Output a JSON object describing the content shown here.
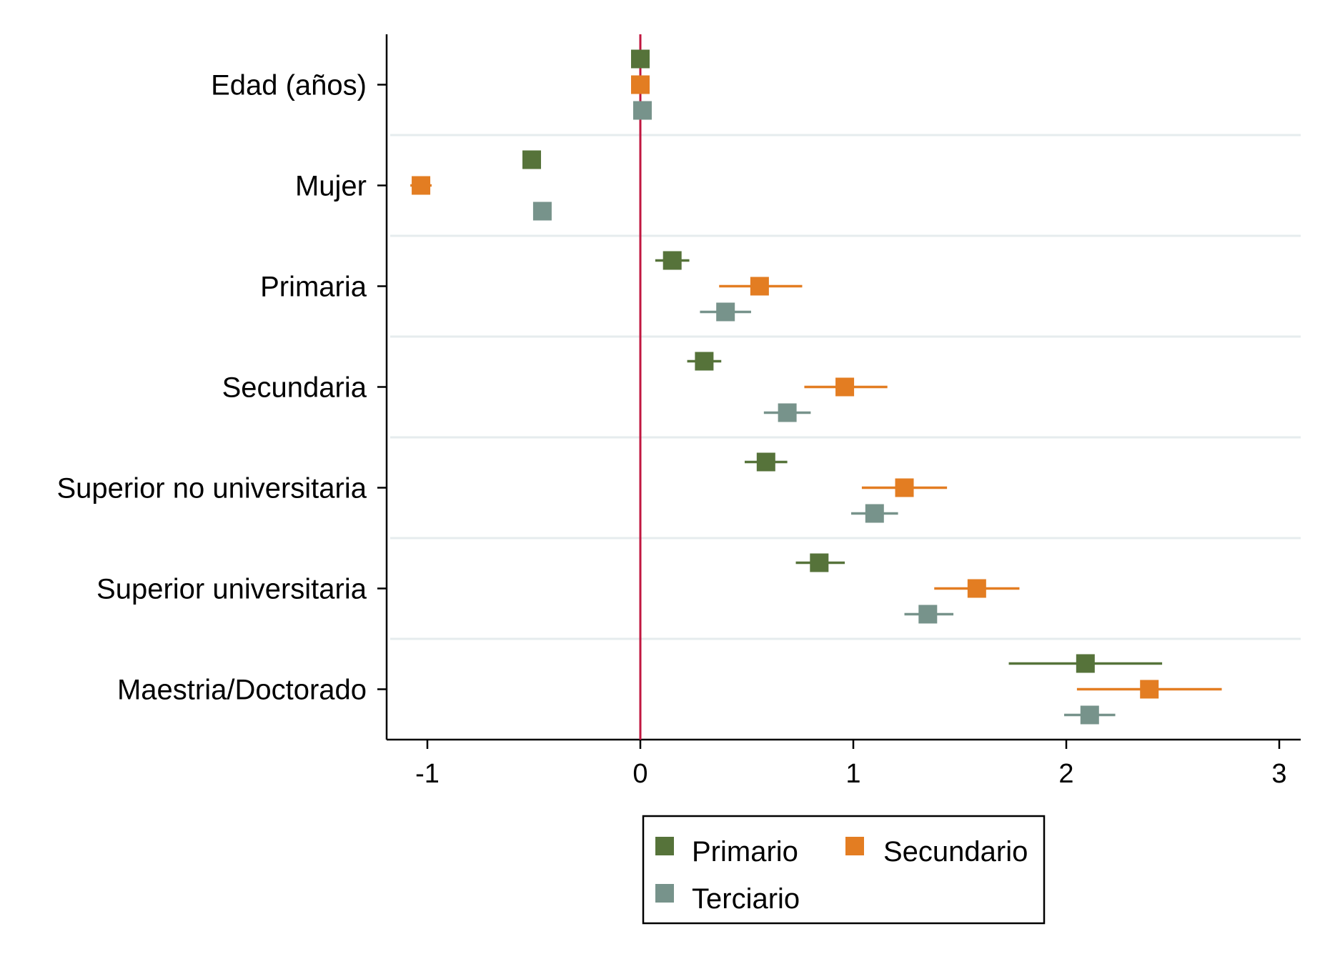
{
  "chart_data": {
    "type": "scatter",
    "subtype": "coefficient-plot",
    "title": "",
    "xlabel": "",
    "ylabel": "",
    "xlim": [
      -1.2,
      3.1
    ],
    "xticks": [
      -1,
      0,
      1,
      2,
      3
    ],
    "xtick_labels": [
      "-1",
      "0",
      "1",
      "2",
      "3"
    ],
    "reference_line": 0,
    "reference_line_color": "#c0163f",
    "grid": "horizontal",
    "legend_position": "bottom",
    "categories": [
      "Edad (años)",
      "Mujer",
      "Primaria",
      "Secundaria",
      "Superior no universitaria",
      "Superior universitaria",
      "Maestria/Doctorado"
    ],
    "series": [
      {
        "name": "Primario",
        "color": "#56733a",
        "estimates": [
          0.0,
          -0.51,
          0.15,
          0.3,
          0.59,
          0.84,
          2.09
        ],
        "ci_low": [
          0.0,
          -0.51,
          0.07,
          0.22,
          0.49,
          0.73,
          1.73
        ],
        "ci_high": [
          0.0,
          -0.51,
          0.23,
          0.38,
          0.69,
          0.96,
          2.45
        ]
      },
      {
        "name": "Secundario",
        "color": "#e37d22",
        "estimates": [
          0.0,
          -1.03,
          0.56,
          0.96,
          1.24,
          1.58,
          2.39
        ],
        "ci_low": [
          0.0,
          -1.08,
          0.37,
          0.77,
          1.04,
          1.38,
          2.05
        ],
        "ci_high": [
          0.0,
          -0.98,
          0.76,
          1.16,
          1.44,
          1.78,
          2.73
        ]
      },
      {
        "name": "Terciario",
        "color": "#77938b",
        "estimates": [
          0.01,
          -0.46,
          0.4,
          0.69,
          1.1,
          1.35,
          2.11
        ],
        "ci_low": [
          0.01,
          -0.46,
          0.28,
          0.58,
          0.99,
          1.24,
          1.99
        ],
        "ci_high": [
          0.01,
          -0.46,
          0.52,
          0.8,
          1.21,
          1.47,
          2.23
        ]
      }
    ]
  }
}
